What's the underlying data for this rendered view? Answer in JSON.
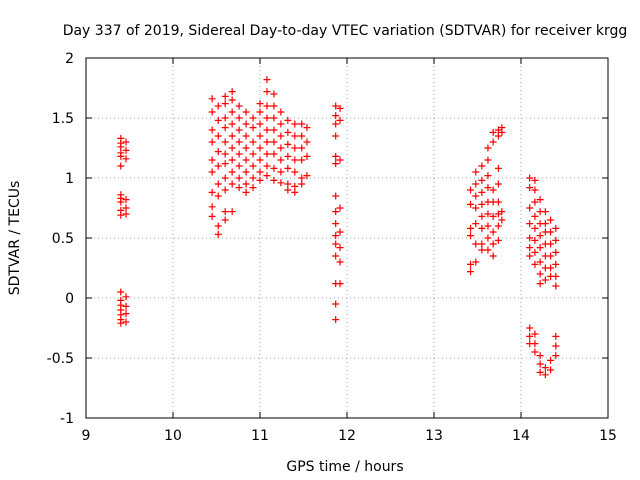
{
  "chart_data": {
    "type": "scatter",
    "title": "Day 337 of 2019, Sidereal Day-to-day VTEC variation (SDTVAR) for receiver krgg",
    "xlabel": "GPS time / hours",
    "ylabel": "SDTVAR / TECUs",
    "xlim": [
      9,
      15
    ],
    "ylim": [
      -1,
      2
    ],
    "xticks": [
      "9",
      "10",
      "11",
      "12",
      "13",
      "14",
      "15"
    ],
    "yticks": [
      "-1",
      "-0.5",
      "0",
      "0.5",
      "1",
      "1.5",
      "2"
    ],
    "grid": true,
    "legend": "none",
    "marker": "+",
    "color": "#ff0000",
    "series": [
      {
        "name": "SDTVAR",
        "clusters": [
          {
            "x": 9.4,
            "ys": [
              1.33,
              1.29,
              1.26,
              1.21,
              1.18,
              1.1,
              0.86,
              0.83,
              0.8,
              0.73,
              0.69,
              0.05,
              -0.02,
              -0.06,
              -0.1,
              -0.14,
              -0.18,
              -0.21
            ]
          },
          {
            "x": 9.46,
            "ys": [
              1.3,
              1.23,
              1.16,
              0.82,
              0.75,
              0.7,
              0.01,
              -0.07,
              -0.13,
              -0.2
            ]
          },
          {
            "x": 10.45,
            "ys": [
              1.66,
              1.55,
              1.4,
              1.3,
              1.15,
              1.05,
              0.88,
              0.76,
              0.68
            ]
          },
          {
            "x": 10.52,
            "ys": [
              1.6,
              1.48,
              1.35,
              1.22,
              1.1,
              0.95,
              0.85,
              0.6,
              0.53
            ]
          },
          {
            "x": 10.6,
            "ys": [
              1.68,
              1.62,
              1.5,
              1.42,
              1.3,
              1.2,
              1.12,
              1.0,
              0.9,
              0.72,
              0.65
            ]
          },
          {
            "x": 10.68,
            "ys": [
              1.72,
              1.65,
              1.55,
              1.45,
              1.35,
              1.25,
              1.15,
              1.05,
              0.95,
              0.72
            ]
          },
          {
            "x": 10.76,
            "ys": [
              1.6,
              1.5,
              1.4,
              1.3,
              1.2,
              1.1,
              1.0,
              0.92
            ]
          },
          {
            "x": 10.84,
            "ys": [
              1.55,
              1.45,
              1.35,
              1.25,
              1.15,
              1.05,
              0.95,
              0.88
            ]
          },
          {
            "x": 10.92,
            "ys": [
              1.5,
              1.42,
              1.3,
              1.2,
              1.1,
              1.0,
              0.92
            ]
          },
          {
            "x": 11.0,
            "ys": [
              1.62,
              1.55,
              1.45,
              1.35,
              1.25,
              1.15,
              1.05,
              0.98
            ]
          },
          {
            "x": 11.08,
            "ys": [
              1.82,
              1.72,
              1.6,
              1.5,
              1.4,
              1.3,
              1.2,
              1.1,
              1.02
            ]
          },
          {
            "x": 11.16,
            "ys": [
              1.7,
              1.6,
              1.5,
              1.4,
              1.3,
              1.2,
              1.08,
              0.98
            ]
          },
          {
            "x": 11.24,
            "ys": [
              1.55,
              1.45,
              1.35,
              1.25,
              1.15,
              1.05,
              0.96
            ]
          },
          {
            "x": 11.32,
            "ys": [
              1.48,
              1.38,
              1.28,
              1.18,
              1.08,
              0.95,
              0.9
            ]
          },
          {
            "x": 11.4,
            "ys": [
              1.45,
              1.35,
              1.25,
              1.15,
              1.05,
              0.93,
              0.88
            ]
          },
          {
            "x": 11.48,
            "ys": [
              1.45,
              1.35,
              1.25,
              1.15,
              1.0,
              0.95
            ]
          },
          {
            "x": 11.54,
            "ys": [
              1.42,
              1.3,
              1.18,
              1.02
            ]
          },
          {
            "x": 11.87,
            "ys": [
              1.6,
              1.52,
              1.45,
              1.35,
              1.18,
              1.12,
              0.85,
              0.72,
              0.62,
              0.52,
              0.45,
              0.35,
              0.12,
              -0.05,
              -0.18
            ]
          },
          {
            "x": 11.92,
            "ys": [
              1.58,
              1.48,
              1.15,
              0.75,
              0.55,
              0.42,
              0.3,
              0.12
            ]
          },
          {
            "x": 13.42,
            "ys": [
              0.9,
              0.78,
              0.58,
              0.52,
              0.28,
              0.22
            ]
          },
          {
            "x": 13.48,
            "ys": [
              1.05,
              0.95,
              0.85,
              0.75,
              0.62,
              0.45,
              0.3
            ]
          },
          {
            "x": 13.55,
            "ys": [
              1.1,
              0.98,
              0.88,
              0.78,
              0.68,
              0.58,
              0.45,
              0.4
            ]
          },
          {
            "x": 13.62,
            "ys": [
              1.25,
              1.15,
              1.02,
              0.92,
              0.8,
              0.7,
              0.6,
              0.5,
              0.4
            ]
          },
          {
            "x": 13.68,
            "ys": [
              1.38,
              1.3,
              0.9,
              0.8,
              0.68,
              0.55,
              0.45,
              0.35
            ]
          },
          {
            "x": 13.74,
            "ys": [
              1.4,
              1.35,
              1.08,
              0.95,
              0.8,
              0.7,
              0.6,
              0.48
            ]
          },
          {
            "x": 13.78,
            "ys": [
              1.42,
              1.38,
              0.72,
              0.65
            ]
          },
          {
            "x": 14.1,
            "ys": [
              1.0,
              0.92,
              0.75,
              0.62,
              0.5,
              0.42,
              0.35,
              -0.25,
              -0.32,
              -0.38
            ]
          },
          {
            "x": 14.16,
            "ys": [
              0.98,
              0.9,
              0.8,
              0.68,
              0.58,
              0.48,
              0.38,
              0.28,
              -0.3,
              -0.38,
              -0.45
            ]
          },
          {
            "x": 14.22,
            "ys": [
              0.82,
              0.72,
              0.62,
              0.52,
              0.42,
              0.3,
              0.2,
              0.12,
              -0.48,
              -0.55,
              -0.62
            ]
          },
          {
            "x": 14.28,
            "ys": [
              0.72,
              0.62,
              0.55,
              0.45,
              0.35,
              0.25,
              0.15,
              -0.58,
              -0.64
            ]
          },
          {
            "x": 14.34,
            "ys": [
              0.65,
              0.55,
              0.45,
              0.35,
              0.25,
              0.18,
              -0.52,
              -0.6
            ]
          },
          {
            "x": 14.4,
            "ys": [
              0.58,
              0.48,
              0.38,
              0.28,
              0.18,
              0.1,
              -0.32,
              -0.4,
              -0.48
            ]
          }
        ]
      }
    ]
  }
}
